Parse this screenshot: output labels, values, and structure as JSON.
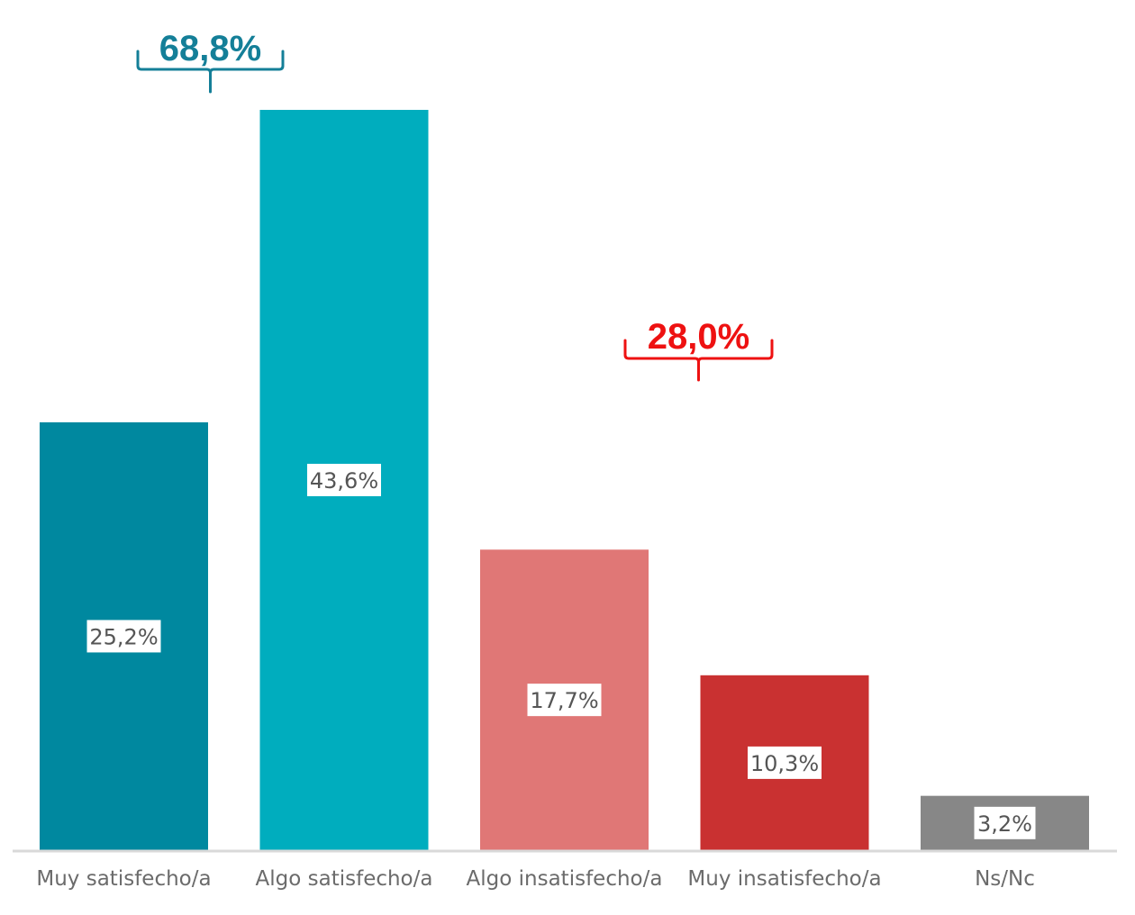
{
  "chart_data": {
    "type": "bar",
    "categories": [
      "Muy satisfecho/a",
      "Algo satisfecho/a",
      "Algo insatisfecho/a",
      "Muy insatisfecho/a",
      "Ns/Nc"
    ],
    "values": [
      25.2,
      43.6,
      17.7,
      10.3,
      3.2
    ],
    "value_labels": [
      "25,2%",
      "43,6%",
      "17,7%",
      "10,3%",
      "3,2%"
    ],
    "colors": [
      "#00889f",
      "#00adbe",
      "#e07776",
      "#c93131",
      "#878787"
    ],
    "ylim": [
      0,
      43.6
    ],
    "grid": false,
    "legend": "none",
    "annotations": [
      {
        "text": "68,8%",
        "spans": [
          "Muy satisfecho/a",
          "Algo satisfecho/a"
        ],
        "color": "#147f98"
      },
      {
        "text": "28,0%",
        "spans": [
          "Algo insatisfecho/a",
          "Muy insatisfecho/a"
        ],
        "color": "#ee1111"
      }
    ],
    "axis_color": "#d9d9d9",
    "label_box_color": "#ffffff"
  }
}
